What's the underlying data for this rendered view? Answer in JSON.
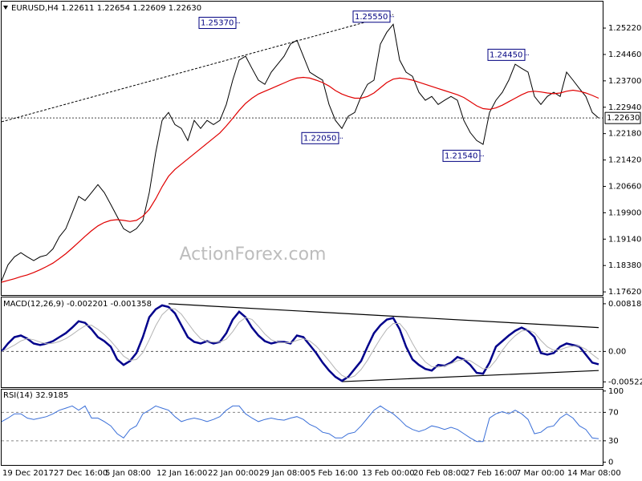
{
  "chart_data": [
    {
      "type": "line",
      "title": "EURUSD,H4  1.22611 1.22654 1.22609 1.22630",
      "watermark": "ActionForex.com",
      "ylim": [
        1.1753,
        1.2596
      ],
      "yticks": [
        {
          "value": 1.2522,
          "label": "1.25220"
        },
        {
          "value": 1.2446,
          "label": "1.24460"
        },
        {
          "value": 1.237,
          "label": "1.23700"
        },
        {
          "value": 1.2294,
          "label": "1.22940"
        },
        {
          "value": 1.2218,
          "label": "1.22180"
        },
        {
          "value": 1.2142,
          "label": "1.21420"
        },
        {
          "value": 1.2066,
          "label": "1.20660"
        },
        {
          "value": 1.199,
          "label": "1.19900"
        },
        {
          "value": 1.1914,
          "label": "1.19140"
        },
        {
          "value": 1.1838,
          "label": "1.18380"
        },
        {
          "value": 1.1762,
          "label": "1.17620"
        }
      ],
      "series": [
        {
          "color": "#000000",
          "values": [
            1.1794,
            1.184,
            1.1863,
            1.1875,
            1.1863,
            1.1852,
            1.1863,
            1.1868,
            1.1886,
            1.1921,
            1.1944,
            1.199,
            1.2037,
            1.2025,
            1.2048,
            1.2071,
            1.2048,
            1.2014,
            1.1979,
            1.1944,
            1.1933,
            1.1944,
            1.1967,
            1.2048,
            1.2163,
            1.2256,
            1.2279,
            1.2244,
            1.2233,
            1.2198,
            1.2256,
            1.2233,
            1.2256,
            1.2244,
            1.2256,
            1.2302,
            1.2372,
            1.243,
            1.2441,
            1.2406,
            1.2372,
            1.236,
            1.2395,
            1.2418,
            1.2441,
            1.2476,
            1.2487,
            1.2441,
            1.2395,
            1.2383,
            1.2372,
            1.2302,
            1.2256,
            1.2233,
            1.2268,
            1.2279,
            1.2325,
            1.236,
            1.2372,
            1.2476,
            1.251,
            1.2533,
            1.243,
            1.2395,
            1.2383,
            1.2337,
            1.2314,
            1.2325,
            1.2302,
            1.2314,
            1.2325,
            1.2314,
            1.2256,
            1.2221,
            1.2198,
            1.2187,
            1.2279,
            1.2314,
            1.2337,
            1.2372,
            1.2418,
            1.2406,
            1.2395,
            1.2325,
            1.2302,
            1.2325,
            1.2337,
            1.2325,
            1.2395,
            1.2372,
            1.2348,
            1.2325,
            1.2279,
            1.2263
          ]
        },
        {
          "color": "#e00000",
          "values": [
            1.179,
            1.1795,
            1.18,
            1.1806,
            1.1811,
            1.1818,
            1.1826,
            1.1835,
            1.1845,
            1.1858,
            1.1872,
            1.1888,
            1.1905,
            1.1922,
            1.1938,
            1.1952,
            1.1962,
            1.1968,
            1.197,
            1.1968,
            1.1965,
            1.1968,
            1.198,
            1.2,
            1.203,
            1.2065,
            1.2095,
            1.2115,
            1.213,
            1.2145,
            1.216,
            1.2175,
            1.219,
            1.2205,
            1.222,
            1.224,
            1.2262,
            1.2285,
            1.2305,
            1.232,
            1.2332,
            1.234,
            1.2348,
            1.2356,
            1.2364,
            1.2372,
            1.2378,
            1.238,
            1.2378,
            1.2372,
            1.2365,
            1.2355,
            1.2342,
            1.2332,
            1.2325,
            1.232,
            1.232,
            1.2325,
            1.2335,
            1.235,
            1.2365,
            1.2375,
            1.2378,
            1.2376,
            1.2372,
            1.2366,
            1.236,
            1.2354,
            1.2348,
            1.2342,
            1.2336,
            1.233,
            1.2322,
            1.231,
            1.2298,
            1.229,
            1.2288,
            1.2292,
            1.23,
            1.231,
            1.232,
            1.233,
            1.2338,
            1.234,
            1.2338,
            1.2335,
            1.2333,
            1.2335,
            1.234,
            1.2343,
            1.234,
            1.2335,
            1.2328,
            1.232
          ]
        }
      ],
      "annotations": [
        {
          "bar": 37,
          "value": 1.2537,
          "label": "1.25370"
        },
        {
          "bar": 61,
          "value": 1.2555,
          "label": "1.25550"
        },
        {
          "bar": 82,
          "value": 1.2445,
          "label": "1.24450"
        },
        {
          "bar": 53,
          "value": 1.2205,
          "label": "1.22050"
        },
        {
          "bar": 75,
          "value": 1.2154,
          "label": "1.21540"
        }
      ],
      "trendlines": [
        {
          "start": 0,
          "start_value": 1.2252,
          "end": 61,
          "end_value": 1.2561
        }
      ],
      "price_line": {
        "value": 1.2263,
        "label": "1.22630"
      }
    },
    {
      "type": "line",
      "title": "MACD(12,26,9) -0.002201 -0.001358",
      "ylim": [
        -0.00614,
        0.00927
      ],
      "yticks": [
        0.008182,
        {
          "value": 0,
          "label": "0.00"
        },
        -0.005223
      ],
      "zero_line": true,
      "series": [
        {
          "color": "#00008b",
          "values": [
            0,
            0.001364,
            0.002455,
            0.002728,
            0.002182,
            0.001364,
            0.001091,
            0.001364,
            0.001773,
            0.002455,
            0.003137,
            0.004092,
            0.005183,
            0.00491,
            0.003819,
            0.002455,
            0.001773,
            0.000818,
            -0.001364,
            -0.002319,
            -0.001637,
            -0.000273,
            0.002455,
            0.005865,
            0.007229,
            0.007911,
            0.007638,
            0.006547,
            0.004501,
            0.002455,
            0.001637,
            0.001364,
            0.001773,
            0.001364,
            0.001637,
            0.003137,
            0.005456,
            0.00682,
            0.005865,
            0.004092,
            0.002728,
            0.001773,
            0.001364,
            0.001637,
            0.001637,
            0.001364,
            0.002728,
            0.002455,
            0.001091,
            -0.000273,
            -0.00191,
            -0.003274,
            -0.004365,
            -0.005047,
            -0.004365,
            -0.003001,
            -0.001637,
            0.000818,
            0.003137,
            0.004501,
            0.005456,
            0.005729,
            0.003819,
            0.000818,
            -0.001364,
            -0.002319,
            -0.003001,
            -0.003274,
            -0.002319,
            -0.002455,
            -0.00191,
            -0.000955,
            -0.001364,
            -0.002319,
            -0.003683,
            -0.003819,
            -0.00191,
            0.000818,
            0.001773,
            0.002728,
            0.003546,
            0.004092,
            0.003546,
            0.002455,
            -0.000273,
            -0.000546,
            -0.000273,
            0.000818,
            0.001364,
            0.001091,
            0.000818,
            -0.000546,
            -0.00191,
            -0.002201
          ]
        },
        {
          "color": "#b4b4b4",
          "values": [
            0,
            0.0005,
            0.0011,
            0.0018,
            0.0022,
            0.002,
            0.0016,
            0.0013,
            0.0014,
            0.0017,
            0.0022,
            0.0029,
            0.0037,
            0.0044,
            0.0045,
            0.0038,
            0.0029,
            0.0018,
            0.0005,
            -0.0008,
            -0.0015,
            -0.0014,
            -0.0002,
            0.002,
            0.0044,
            0.0063,
            0.0073,
            0.0073,
            0.0064,
            0.0049,
            0.0034,
            0.0022,
            0.0017,
            0.0016,
            0.0016,
            0.0021,
            0.0034,
            0.005,
            0.0058,
            0.0055,
            0.0043,
            0.003,
            0.002,
            0.0016,
            0.0015,
            0.0015,
            0.0019,
            0.0022,
            0.0018,
            0.0009,
            -0.0003,
            -0.0016,
            -0.003,
            -0.0041,
            -0.0046,
            -0.0042,
            -0.0031,
            -0.0015,
            0.0004,
            0.0022,
            0.0038,
            0.0048,
            0.0048,
            0.0035,
            0.0014,
            -0.0005,
            -0.0018,
            -0.0026,
            -0.0027,
            -0.0025,
            -0.0021,
            -0.0016,
            -0.0014,
            -0.0016,
            -0.0023,
            -0.003,
            -0.0028,
            -0.0015,
            0.0002,
            0.0016,
            0.0027,
            0.0035,
            0.0037,
            0.0032,
            0.0019,
            0.0008,
            0.0002,
            0.0003,
            0.0007,
            0.0009,
            0.0009,
            0.0004,
            -0.0005,
            -0.001358
          ]
        }
      ],
      "trendlines": [
        {
          "start": 26,
          "start_value": 0.008182,
          "end": 93,
          "end_value": 0.004092
        },
        {
          "start": 53,
          "start_value": -0.005183,
          "end": 93,
          "end_value": -0.003274
        }
      ]
    },
    {
      "type": "line",
      "title": "RSI(14) 32.9185",
      "ylim": [
        -4,
        102
      ],
      "yticks": [
        100,
        70,
        30,
        0
      ],
      "levels": [
        70,
        30
      ],
      "series": [
        {
          "color": "#3a6fd8",
          "values": [
            57,
            62,
            68,
            68,
            62,
            60,
            62,
            64,
            68,
            73,
            76,
            79,
            73,
            79,
            62,
            62,
            57,
            51,
            40,
            34,
            46,
            51,
            68,
            73,
            79,
            76,
            73,
            64,
            57,
            60,
            62,
            60,
            57,
            60,
            64,
            73,
            79,
            79,
            68,
            62,
            57,
            60,
            62,
            60,
            59,
            62,
            64,
            60,
            53,
            49,
            42,
            40,
            34,
            34,
            40,
            42,
            51,
            62,
            73,
            79,
            73,
            68,
            60,
            51,
            46,
            43,
            46,
            51,
            49,
            46,
            49,
            46,
            40,
            34,
            29,
            29,
            62,
            68,
            71,
            68,
            73,
            68,
            60,
            40,
            42,
            49,
            51,
            62,
            68,
            62,
            51,
            46,
            34,
            32.9185
          ]
        }
      ],
      "categories": [
        "19 Dec 2017",
        null,
        null,
        null,
        null,
        null,
        null,
        null,
        "27 Dec 16:00",
        null,
        null,
        null,
        null,
        null,
        null,
        null,
        "5 Jan 08:00",
        null,
        null,
        null,
        null,
        null,
        null,
        null,
        "12 Jan 16:00",
        null,
        null,
        null,
        null,
        null,
        null,
        null,
        "22 Jan 00:00",
        null,
        null,
        null,
        null,
        null,
        null,
        null,
        "29 Jan 08:00",
        null,
        null,
        null,
        null,
        null,
        null,
        null,
        "5 Feb 16:00",
        null,
        null,
        null,
        null,
        null,
        null,
        null,
        "13 Feb 00:00",
        null,
        null,
        null,
        null,
        null,
        null,
        null,
        "20 Feb 08:00",
        null,
        null,
        null,
        null,
        null,
        null,
        null,
        "27 Feb 16:00",
        null,
        null,
        null,
        null,
        null,
        null,
        null,
        "7 Mar 00:00",
        null,
        null,
        null,
        null,
        null,
        null,
        null,
        "14 Mar 08:00",
        null,
        null,
        null,
        null,
        null
      ]
    }
  ]
}
